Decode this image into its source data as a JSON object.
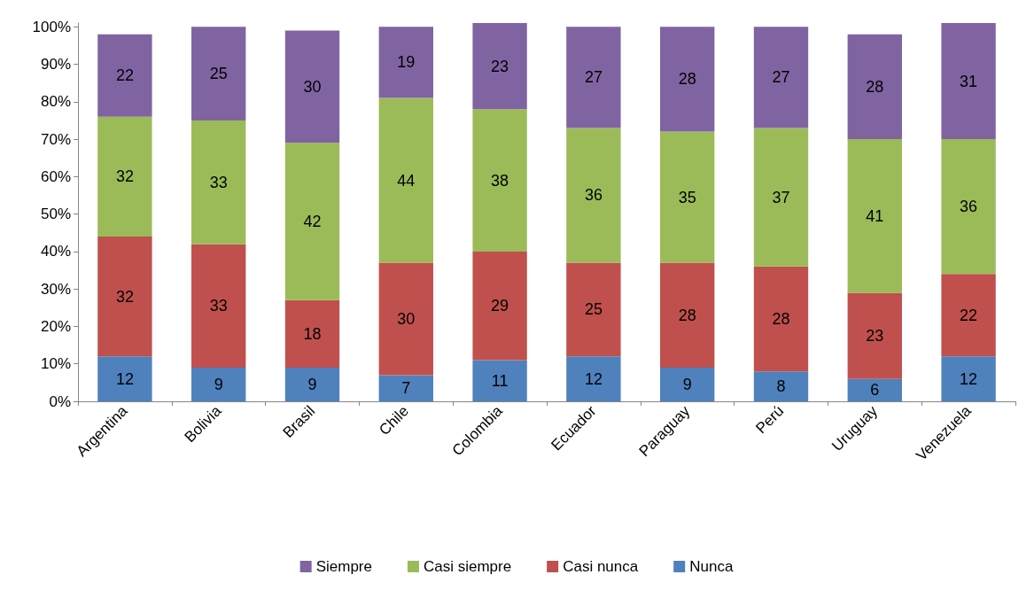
{
  "chart_data": {
    "type": "bar",
    "stacked": true,
    "categories": [
      "Argentina",
      "Bolivia",
      "Brasil",
      "Chile",
      "Colombia",
      "Ecuador",
      "Paraguay",
      "Perú",
      "Uruguay",
      "Venezuela"
    ],
    "series": [
      {
        "name": "Nunca",
        "color": "#4f81bd",
        "values": [
          12,
          9,
          9,
          7,
          11,
          12,
          9,
          8,
          6,
          12
        ]
      },
      {
        "name": "Casi nunca",
        "color": "#c0504d",
        "values": [
          32,
          33,
          18,
          30,
          29,
          25,
          28,
          28,
          23,
          22
        ]
      },
      {
        "name": "Casi siempre",
        "color": "#9bbb59",
        "values": [
          32,
          33,
          42,
          44,
          38,
          36,
          35,
          37,
          41,
          36
        ]
      },
      {
        "name": "Siempre",
        "color": "#8064a2",
        "values": [
          22,
          25,
          30,
          19,
          23,
          27,
          28,
          27,
          28,
          31
        ]
      }
    ],
    "ylim": [
      0,
      101
    ],
    "yticks": [
      {
        "value": 0,
        "label": "0%"
      },
      {
        "value": 10,
        "label": "10%"
      },
      {
        "value": 20,
        "label": "20%"
      },
      {
        "value": 30,
        "label": "30%"
      },
      {
        "value": 40,
        "label": "40%"
      },
      {
        "value": 50,
        "label": "50%"
      },
      {
        "value": 60,
        "label": "60%"
      },
      {
        "value": 70,
        "label": "70%"
      },
      {
        "value": 80,
        "label": "80%"
      },
      {
        "value": 90,
        "label": "90%"
      },
      {
        "value": 100,
        "label": "100%"
      }
    ],
    "grid": false,
    "legend": "bottom",
    "data_labels": true
  }
}
